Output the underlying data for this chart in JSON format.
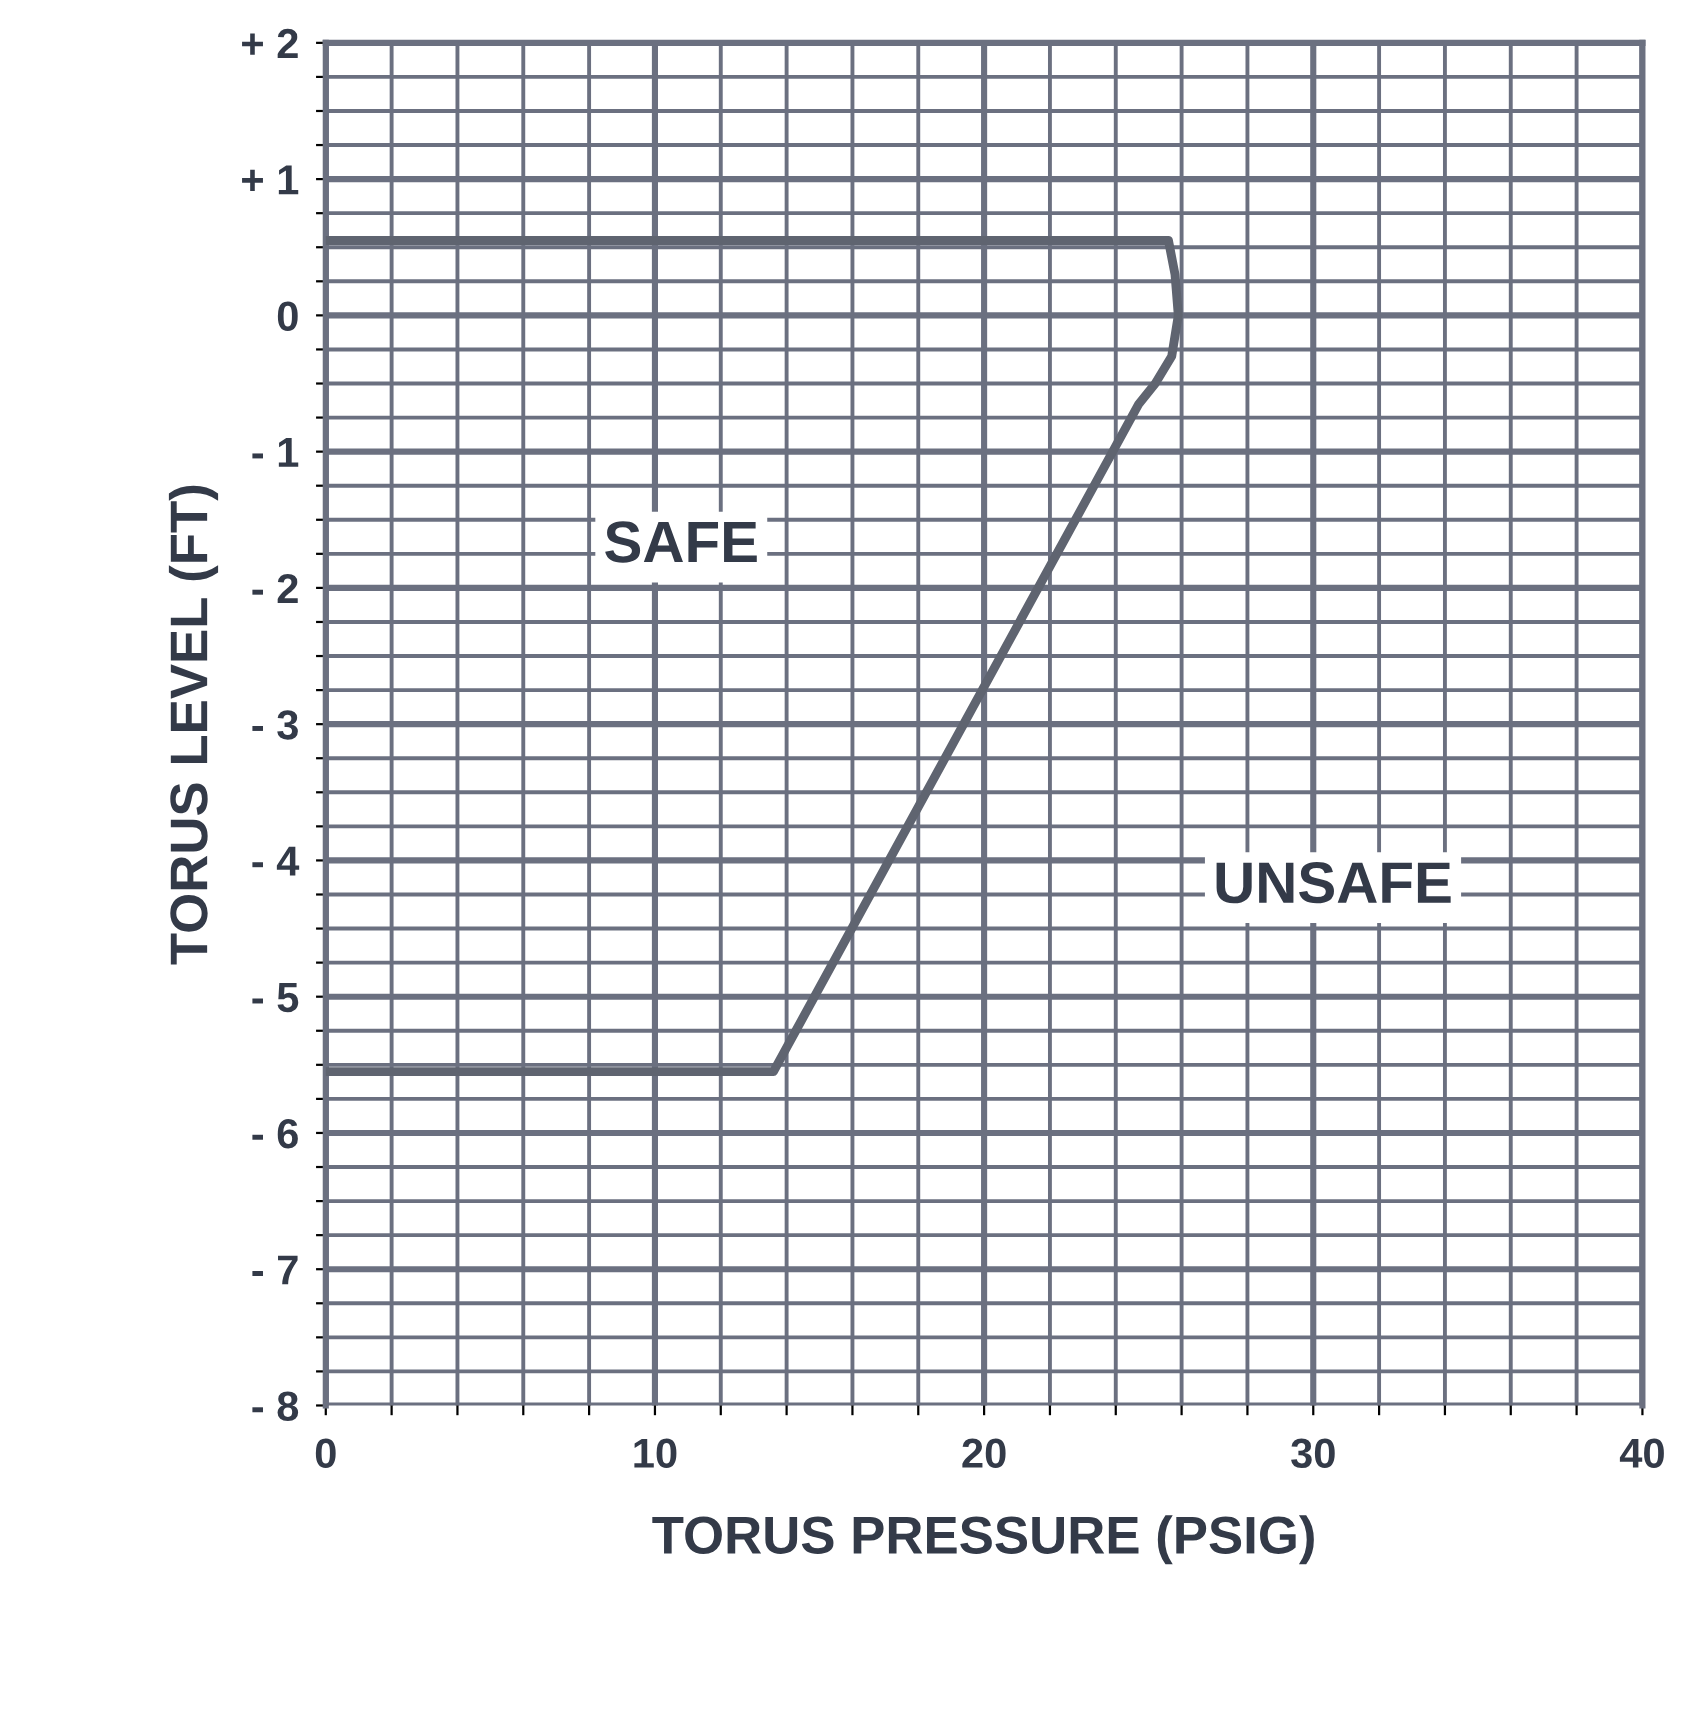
{
  "chart_data": {
    "type": "line",
    "xlabel": "TORUS PRESSURE (PSIG)",
    "ylabel": "TORUS LEVEL (FT)",
    "series": [
      {
        "color": "#5f6470",
        "x": [
          0,
          25.6,
          25.8,
          25.9,
          25.7,
          25.2,
          24.7,
          13.6,
          0
        ],
        "values": [
          0.55,
          0.55,
          0.3,
          0.0,
          -0.3,
          -0.5,
          -0.65,
          -5.55,
          -5.55
        ]
      }
    ],
    "xlim": [
      0,
      40
    ],
    "ylim": [
      -8,
      2
    ],
    "xticks": [
      0,
      {
        "value": 2,
        "label": null
      },
      {
        "value": 4,
        "label": null
      },
      {
        "value": 6,
        "label": null
      },
      {
        "value": 8,
        "label": null
      },
      10,
      {
        "value": 12,
        "label": null
      },
      {
        "value": 14,
        "label": null
      },
      {
        "value": 16,
        "label": null
      },
      {
        "value": 18,
        "label": null
      },
      20,
      {
        "value": 22,
        "label": null
      },
      {
        "value": 24,
        "label": null
      },
      {
        "value": 26,
        "label": null
      },
      {
        "value": 28,
        "label": null
      },
      30,
      {
        "value": 32,
        "label": null
      },
      {
        "value": 34,
        "label": null
      },
      {
        "value": 36,
        "label": null
      },
      {
        "value": 38,
        "label": null
      },
      40
    ],
    "yticks": [
      {
        "value": -8,
        "label": "- 8"
      },
      {
        "value": -7.75,
        "label": null
      },
      {
        "value": -7.5,
        "label": null
      },
      {
        "value": -7.25,
        "label": null
      },
      {
        "value": -7,
        "label": "- 7"
      },
      {
        "value": -6.75,
        "label": null
      },
      {
        "value": -6.5,
        "label": null
      },
      {
        "value": -6.25,
        "label": null
      },
      {
        "value": -6,
        "label": "- 6"
      },
      {
        "value": -5.75,
        "label": null
      },
      {
        "value": -5.5,
        "label": null
      },
      {
        "value": -5.25,
        "label": null
      },
      {
        "value": -5,
        "label": "- 5"
      },
      {
        "value": -4.75,
        "label": null
      },
      {
        "value": -4.5,
        "label": null
      },
      {
        "value": -4.25,
        "label": null
      },
      {
        "value": -4,
        "label": "- 4"
      },
      {
        "value": -3.75,
        "label": null
      },
      {
        "value": -3.5,
        "label": null
      },
      {
        "value": -3.25,
        "label": null
      },
      {
        "value": -3,
        "label": "- 3"
      },
      {
        "value": -2.75,
        "label": null
      },
      {
        "value": -2.5,
        "label": null
      },
      {
        "value": -2.25,
        "label": null
      },
      {
        "value": -2,
        "label": "- 2"
      },
      {
        "value": -1.75,
        "label": null
      },
      {
        "value": -1.5,
        "label": null
      },
      {
        "value": -1.25,
        "label": null
      },
      {
        "value": -1,
        "label": "- 1"
      },
      {
        "value": -0.75,
        "label": null
      },
      {
        "value": -0.5,
        "label": null
      },
      {
        "value": -0.25,
        "label": null
      },
      0,
      {
        "value": 0.25,
        "label": null
      },
      {
        "value": 0.5,
        "label": null
      },
      {
        "value": 0.75,
        "label": null
      },
      {
        "value": 1,
        "label": "+ 1"
      },
      {
        "value": 1.25,
        "label": null
      },
      {
        "value": 1.5,
        "label": null
      },
      {
        "value": 1.75,
        "label": null
      },
      {
        "value": 2,
        "label": "+ 2"
      }
    ],
    "grid": true,
    "marker": "none",
    "line_style": "solid",
    "legend": false,
    "annotations": [
      "SAFE",
      "UNSAFE"
    ]
  }
}
